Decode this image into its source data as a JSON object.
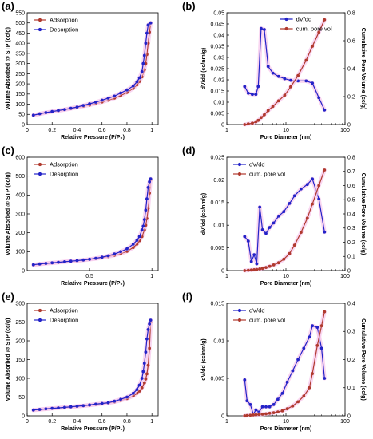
{
  "figure": {
    "colors": {
      "adsorption": "#b03a2e",
      "desorption": "#2323c8",
      "glow": "#f7c8ec",
      "axis": "#000000"
    }
  },
  "chart_data": [
    {
      "id": "a",
      "panel_label": "(a)",
      "type": "line",
      "xlabel": "Relative Pressure (P/P₀)",
      "ylabel": "Volume Absorbed @ STP (cc/g)",
      "xlim": [
        0,
        1.05
      ],
      "ylim": [
        0,
        550
      ],
      "xticks": [
        0,
        0.2,
        0.4,
        0.6,
        0.8,
        1
      ],
      "xticklabels": [
        "0",
        "0.2",
        "0.4",
        "0.6",
        "0.8",
        "1"
      ],
      "yticks": [
        0,
        50,
        100,
        150,
        200,
        250,
        300,
        350,
        400,
        450,
        500,
        550
      ],
      "yticklabels": [
        "0",
        "50",
        "100",
        "150",
        "200",
        "250",
        "300",
        "350",
        "400",
        "450",
        "500",
        "550"
      ],
      "legend": "top-left",
      "series": [
        {
          "name": "Adsorption",
          "color": "#b03a2e",
          "x": [
            0.05,
            0.1,
            0.15,
            0.2,
            0.25,
            0.3,
            0.35,
            0.4,
            0.45,
            0.5,
            0.55,
            0.6,
            0.65,
            0.7,
            0.75,
            0.8,
            0.85,
            0.88,
            0.9,
            0.92,
            0.94,
            0.95,
            0.96,
            0.97,
            0.98,
            0.99
          ],
          "y": [
            45,
            52,
            58,
            63,
            68,
            73,
            78,
            84,
            90,
            96,
            103,
            111,
            120,
            130,
            143,
            158,
            178,
            195,
            212,
            235,
            270,
            300,
            345,
            400,
            455,
            500
          ]
        },
        {
          "name": "Desorption",
          "color": "#2323c8",
          "x": [
            0.99,
            0.97,
            0.96,
            0.95,
            0.94,
            0.93,
            0.92,
            0.9,
            0.88,
            0.85,
            0.8,
            0.75,
            0.7,
            0.65,
            0.6,
            0.55,
            0.5,
            0.45,
            0.4,
            0.35,
            0.3,
            0.25,
            0.2,
            0.15,
            0.1,
            0.05
          ],
          "y": [
            500,
            490,
            450,
            400,
            340,
            300,
            260,
            230,
            210,
            190,
            170,
            155,
            140,
            130,
            120,
            110,
            102,
            94,
            86,
            80,
            74,
            69,
            64,
            59,
            53,
            46
          ]
        }
      ]
    },
    {
      "id": "b",
      "panel_label": "(b)",
      "type": "line",
      "xlabel": "Pore Diameter (nm)",
      "ylabel": "dV/dd (cc/nm/g)",
      "y2label": "Cumulative Pore Volume (cc/g)",
      "xscale": "log",
      "xlim": [
        1,
        100
      ],
      "ylim": [
        0,
        0.05
      ],
      "y2lim": [
        0,
        0.8
      ],
      "xticks": [
        1,
        10,
        100
      ],
      "xticklabels": [
        "1",
        "10",
        "100"
      ],
      "yticks": [
        0,
        0.005,
        0.01,
        0.015,
        0.02,
        0.025,
        0.03,
        0.035,
        0.04,
        0.045,
        0.05
      ],
      "yticklabels": [
        "0",
        "0.005",
        "0.01",
        "0.015",
        "0.02",
        "0.025",
        "0.03",
        "0.035",
        "0.04",
        "0.045",
        "0.05"
      ],
      "y2ticks": [
        0,
        0.2,
        0.4,
        0.6,
        0.8
      ],
      "y2ticklabels": [
        "0",
        "0.2",
        "0.4",
        "0.6",
        "0.8"
      ],
      "legend": "top-center",
      "series": [
        {
          "name": "dV/dd",
          "color": "#2323c8",
          "axis": "left",
          "x": [
            2.0,
            2.3,
            2.7,
            3.1,
            3.4,
            3.8,
            4.3,
            5.0,
            6.0,
            7.5,
            9.5,
            12,
            16,
            22,
            28,
            36,
            45
          ],
          "y": [
            0.017,
            0.014,
            0.0135,
            0.0135,
            0.017,
            0.043,
            0.0425,
            0.026,
            0.023,
            0.0215,
            0.0205,
            0.0198,
            0.0195,
            0.0195,
            0.0185,
            0.012,
            0.0065
          ]
        },
        {
          "name": "cum. pore vol",
          "color": "#b03a2e",
          "axis": "right",
          "x": [
            2.0,
            2.3,
            2.7,
            3.1,
            3.4,
            3.8,
            4.3,
            5.0,
            6.0,
            7.5,
            9.5,
            12,
            16,
            22,
            28,
            36,
            45
          ],
          "y": [
            0,
            0.005,
            0.01,
            0.02,
            0.03,
            0.05,
            0.07,
            0.1,
            0.13,
            0.17,
            0.21,
            0.27,
            0.35,
            0.46,
            0.56,
            0.66,
            0.75
          ]
        }
      ]
    },
    {
      "id": "c",
      "panel_label": "(c)",
      "type": "line",
      "xlabel": "Relative Pressure (P/P₀)",
      "ylabel": "Volume Absorbed @ STP (cc/g)",
      "xlim": [
        0,
        1.05
      ],
      "ylim": [
        0,
        600
      ],
      "xticks": [
        0.5,
        1
      ],
      "xticklabels": [
        "0.5",
        "1"
      ],
      "yticks": [
        0,
        100,
        200,
        300,
        400,
        500,
        600
      ],
      "yticklabels": [
        "0",
        "100",
        "200",
        "300",
        "400",
        "500",
        "600"
      ],
      "legend": "top-left",
      "series": [
        {
          "name": "Adsorption",
          "color": "#b03a2e",
          "x": [
            0.05,
            0.1,
            0.15,
            0.2,
            0.25,
            0.3,
            0.35,
            0.4,
            0.45,
            0.5,
            0.55,
            0.6,
            0.65,
            0.7,
            0.75,
            0.8,
            0.85,
            0.88,
            0.9,
            0.92,
            0.94,
            0.95,
            0.96,
            0.97,
            0.98,
            0.99
          ],
          "y": [
            30,
            34,
            37,
            40,
            43,
            46,
            49,
            52,
            55,
            59,
            63,
            68,
            74,
            81,
            90,
            102,
            122,
            140,
            158,
            180,
            215,
            240,
            275,
            330,
            410,
            480
          ]
        },
        {
          "name": "Desorption",
          "color": "#2323c8",
          "x": [
            0.99,
            0.98,
            0.97,
            0.96,
            0.95,
            0.94,
            0.93,
            0.92,
            0.9,
            0.88,
            0.85,
            0.8,
            0.75,
            0.7,
            0.65,
            0.6,
            0.55,
            0.5,
            0.45,
            0.4,
            0.35,
            0.3,
            0.25,
            0.2,
            0.15,
            0.1,
            0.05
          ],
          "y": [
            485,
            470,
            440,
            380,
            320,
            270,
            235,
            215,
            180,
            160,
            140,
            115,
            100,
            88,
            78,
            71,
            65,
            60,
            56,
            53,
            50,
            47,
            44,
            41,
            38,
            35,
            31
          ]
        }
      ]
    },
    {
      "id": "d",
      "panel_label": "(d)",
      "type": "line",
      "xlabel": "Pore Diameter (nm)",
      "ylabel": "dV/dd (cc/nm/g)",
      "y2label": "Cumulative Pore Volume (cc/g)",
      "xscale": "log",
      "xlim": [
        1,
        100
      ],
      "ylim": [
        0,
        0.025
      ],
      "y2lim": [
        0,
        0.8
      ],
      "xticks": [
        1,
        10,
        100
      ],
      "xticklabels": [
        "1",
        "10",
        "100"
      ],
      "yticks": [
        0,
        0.005,
        0.01,
        0.015,
        0.02,
        0.025
      ],
      "yticklabels": [
        "0",
        "0.005",
        "0.01",
        "0.015",
        "0.02",
        "0.025"
      ],
      "y2ticks": [
        0,
        0.1,
        0.2,
        0.3,
        0.4,
        0.5,
        0.6,
        0.7,
        0.8
      ],
      "y2ticklabels": [
        "0",
        "0.1",
        "0.2",
        "0.3",
        "0.4",
        "0.5",
        "0.6",
        "0.7",
        "0.8"
      ],
      "legend": "top-left",
      "series": [
        {
          "name": "dV/dd",
          "color": "#2323c8",
          "axis": "left",
          "x": [
            2.0,
            2.3,
            2.6,
            2.9,
            3.2,
            3.6,
            4.0,
            4.6,
            5.3,
            6.2,
            7.5,
            9.2,
            11.5,
            14,
            18,
            23,
            28,
            36,
            45
          ],
          "y": [
            0.0075,
            0.0065,
            0.002,
            0.0035,
            0.0015,
            0.014,
            0.009,
            0.0082,
            0.0095,
            0.0105,
            0.012,
            0.013,
            0.0148,
            0.0165,
            0.018,
            0.019,
            0.0202,
            0.0158,
            0.0085
          ]
        },
        {
          "name": "cum. pore vol",
          "color": "#b03a2e",
          "axis": "right",
          "x": [
            2.0,
            2.3,
            2.6,
            2.9,
            3.2,
            3.6,
            4.0,
            4.6,
            5.3,
            6.2,
            7.5,
            9.2,
            11.5,
            14,
            18,
            23,
            28,
            36,
            45
          ],
          "y": [
            0,
            0.002,
            0.004,
            0.006,
            0.008,
            0.012,
            0.016,
            0.022,
            0.03,
            0.04,
            0.055,
            0.08,
            0.12,
            0.18,
            0.27,
            0.37,
            0.47,
            0.6,
            0.71
          ]
        }
      ]
    },
    {
      "id": "e",
      "panel_label": "(e)",
      "type": "line",
      "xlabel": "Relative Pressure (P/P₀)",
      "ylabel": "Volume Absorbed @ STP (cc/g)",
      "xlim": [
        0,
        1.05
      ],
      "ylim": [
        0,
        300
      ],
      "xticks": [
        0,
        0.2,
        0.4,
        0.6,
        0.8,
        1
      ],
      "xticklabels": [
        "0",
        "0.2",
        "0.4",
        "0.6",
        "0.8",
        "1"
      ],
      "yticks": [
        0,
        50,
        100,
        150,
        200,
        250,
        300
      ],
      "yticklabels": [
        "0",
        "50",
        "100",
        "150",
        "200",
        "250",
        "300"
      ],
      "legend": "top-left",
      "series": [
        {
          "name": "Adsorption",
          "color": "#b03a2e",
          "x": [
            0.05,
            0.1,
            0.15,
            0.2,
            0.25,
            0.3,
            0.35,
            0.4,
            0.45,
            0.5,
            0.55,
            0.6,
            0.65,
            0.7,
            0.75,
            0.8,
            0.85,
            0.88,
            0.9,
            0.92,
            0.94,
            0.95,
            0.96,
            0.97,
            0.98,
            0.99
          ],
          "y": [
            15,
            16.5,
            18,
            19.5,
            21,
            22,
            23.5,
            25,
            26.5,
            28,
            30,
            32,
            34,
            37,
            41,
            46,
            53,
            60,
            66,
            75,
            88,
            98,
            112,
            135,
            180,
            250
          ]
        },
        {
          "name": "Desorption",
          "color": "#2323c8",
          "x": [
            0.99,
            0.98,
            0.97,
            0.96,
            0.95,
            0.94,
            0.93,
            0.92,
            0.9,
            0.88,
            0.85,
            0.8,
            0.75,
            0.7,
            0.65,
            0.6,
            0.55,
            0.5,
            0.45,
            0.4,
            0.35,
            0.3,
            0.25,
            0.2,
            0.15,
            0.1,
            0.05
          ],
          "y": [
            255,
            245,
            230,
            205,
            170,
            140,
            118,
            100,
            82,
            70,
            60,
            50,
            44,
            39,
            35,
            33,
            31,
            29,
            27,
            25.5,
            24,
            22.5,
            21,
            20,
            18.5,
            17,
            15.5
          ]
        }
      ]
    },
    {
      "id": "f",
      "panel_label": "(f)",
      "type": "line",
      "xlabel": "Pore Diameter (nm)",
      "ylabel": "dV/dd (cc/nm/g)",
      "y2label": "Cumulative Pore Volume (cc/g)",
      "xscale": "log",
      "xlim": [
        1,
        100
      ],
      "ylim": [
        0,
        0.015
      ],
      "y2lim": [
        0,
        0.4
      ],
      "xticks": [
        1,
        10,
        100
      ],
      "xticklabels": [
        "1",
        "10",
        "100"
      ],
      "yticks": [
        0,
        0.005,
        0.01,
        0.015
      ],
      "yticklabels": [
        "0",
        "0.005",
        "0.01",
        "0.015"
      ],
      "y2ticks": [
        0,
        0.1,
        0.2,
        0.3,
        0.4
      ],
      "y2ticklabels": [
        "0",
        "0.1",
        "0.2",
        "0.3",
        "0.4"
      ],
      "legend": "top-left",
      "series": [
        {
          "name": "dV/dd",
          "color": "#2323c8",
          "axis": "left",
          "x": [
            2.0,
            2.2,
            2.5,
            2.8,
            3.1,
            3.5,
            4.0,
            4.6,
            5.3,
            6.2,
            7.3,
            8.7,
            10.5,
            13,
            16,
            20,
            25,
            28,
            34,
            40,
            45
          ],
          "y": [
            0.0048,
            0.002,
            0.0015,
            0.0002,
            0.0008,
            0.0005,
            0.0012,
            0.0012,
            0.0012,
            0.0015,
            0.0022,
            0.003,
            0.0045,
            0.006,
            0.0075,
            0.009,
            0.0105,
            0.012,
            0.0118,
            0.009,
            0.005
          ]
        },
        {
          "name": "cum. pore vol",
          "color": "#b03a2e",
          "axis": "right",
          "x": [
            2.0,
            2.2,
            2.5,
            2.8,
            3.1,
            3.5,
            4.0,
            4.6,
            5.3,
            6.2,
            7.3,
            8.7,
            10.5,
            13,
            16,
            20,
            25,
            28,
            34,
            40,
            45
          ],
          "y": [
            0,
            0.001,
            0.002,
            0.003,
            0.004,
            0.005,
            0.006,
            0.007,
            0.009,
            0.011,
            0.014,
            0.018,
            0.025,
            0.035,
            0.05,
            0.07,
            0.1,
            0.15,
            0.25,
            0.32,
            0.37
          ]
        }
      ]
    }
  ]
}
